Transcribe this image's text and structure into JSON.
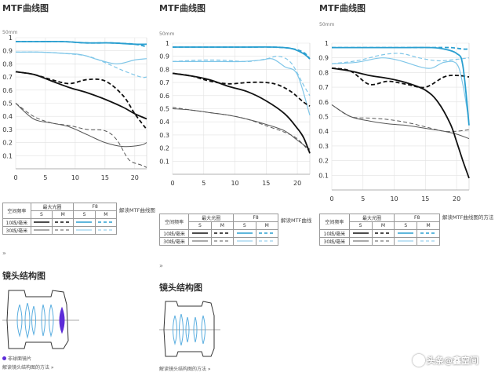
{
  "panels": [
    {
      "title": "MTF曲线图",
      "subtitle": "50mm",
      "legend_link": "解读MTF曲线图",
      "sections_title": "镜头结构图",
      "caption": "非球面镜片",
      "how_link": "解读镜头结构图的方法 »"
    },
    {
      "title": "MTF曲线图",
      "subtitle": "50mm",
      "legend_link": "解读MTF曲线",
      "sections_title": "镜头结构图",
      "caption": "",
      "how_link": "解读镜头结构图的方法 »"
    },
    {
      "title": "MTF曲线图",
      "subtitle": "50mm",
      "legend_link": "解读MTF曲线图的方法",
      "sections_title": "",
      "caption": "",
      "how_link": ""
    }
  ],
  "legend": {
    "freq_header": "空间频率",
    "max_aperture": "最大光圈",
    "f8": "F8",
    "s": "S",
    "m": "M",
    "row10": "10线/毫米",
    "row30": "30线/毫米"
  },
  "quote_mark": "»",
  "watermark": "头条@鑫空间",
  "colors": {
    "blue10": "#2a9fd0",
    "blue30": "#7fc6e8",
    "black10": "#111111",
    "black30": "#555555"
  },
  "chart_data": [
    {
      "type": "line",
      "title": "MTF曲线图",
      "xlim": [
        0,
        22
      ],
      "ylim": [
        0,
        1
      ],
      "xticks": [
        0,
        5,
        10,
        15,
        20
      ],
      "yticks": [
        0.1,
        0.2,
        0.3,
        0.4,
        0.5,
        0.6,
        0.7,
        0.8,
        0.9,
        1
      ],
      "series": [
        {
          "name": "F8 S 10线/毫米",
          "x": [
            0,
            4,
            8,
            12,
            16,
            20,
            22
          ],
          "y": [
            0.97,
            0.97,
            0.97,
            0.96,
            0.96,
            0.95,
            0.95
          ]
        },
        {
          "name": "F8 M 10线/毫米",
          "x": [
            0,
            4,
            8,
            12,
            16,
            20,
            22
          ],
          "y": [
            0.97,
            0.97,
            0.97,
            0.96,
            0.96,
            0.95,
            0.93
          ]
        },
        {
          "name": "F8 S 30线/毫米",
          "x": [
            0,
            4,
            8,
            11,
            14,
            17,
            20,
            22
          ],
          "y": [
            0.89,
            0.89,
            0.88,
            0.87,
            0.83,
            0.8,
            0.83,
            0.84
          ]
        },
        {
          "name": "F8 M 30线/毫米",
          "x": [
            0,
            4,
            8,
            12,
            15,
            18,
            21,
            22
          ],
          "y": [
            0.89,
            0.89,
            0.88,
            0.86,
            0.81,
            0.75,
            0.7,
            0.7
          ]
        },
        {
          "name": "最大光圈 S 10线/毫米",
          "x": [
            0,
            3,
            6,
            9,
            12,
            15,
            18,
            20,
            22
          ],
          "y": [
            0.74,
            0.72,
            0.67,
            0.62,
            0.58,
            0.53,
            0.47,
            0.42,
            0.38
          ]
        },
        {
          "name": "最大光圈 M 10线/毫米",
          "x": [
            0,
            3,
            6,
            9,
            12,
            15,
            18,
            20,
            22
          ],
          "y": [
            0.74,
            0.72,
            0.68,
            0.65,
            0.68,
            0.67,
            0.56,
            0.42,
            0.3
          ]
        },
        {
          "name": "最大光圈 S 30线/毫米",
          "x": [
            0,
            3,
            6,
            9,
            12,
            15,
            18,
            21,
            22
          ],
          "y": [
            0.5,
            0.38,
            0.35,
            0.32,
            0.26,
            0.2,
            0.17,
            0.18,
            0.2
          ]
        },
        {
          "name": "最大光圈 M 30线/毫米",
          "x": [
            0,
            3,
            6,
            9,
            12,
            15,
            17,
            19,
            21,
            22
          ],
          "y": [
            0.5,
            0.4,
            0.35,
            0.33,
            0.3,
            0.29,
            0.22,
            0.07,
            0.03,
            0.01
          ]
        }
      ]
    },
    {
      "type": "line",
      "title": "MTF曲线图",
      "xlim": [
        0,
        22
      ],
      "ylim": [
        0,
        1
      ],
      "xticks": [
        0,
        5,
        10,
        15,
        20
      ],
      "yticks": [
        0.1,
        0.2,
        0.3,
        0.4,
        0.5,
        0.6,
        0.7,
        0.8,
        0.9,
        1
      ],
      "series": [
        {
          "name": "F8 S 10线/毫米",
          "x": [
            0,
            4,
            8,
            12,
            16,
            19,
            21,
            22
          ],
          "y": [
            0.97,
            0.97,
            0.97,
            0.97,
            0.97,
            0.96,
            0.92,
            0.88
          ]
        },
        {
          "name": "F8 M 10线/毫米",
          "x": [
            0,
            4,
            8,
            12,
            16,
            19,
            21,
            22
          ],
          "y": [
            0.97,
            0.97,
            0.97,
            0.97,
            0.97,
            0.96,
            0.93,
            0.88
          ]
        },
        {
          "name": "F8 S 30线/毫米",
          "x": [
            0,
            4,
            8,
            11,
            14,
            16,
            18,
            20,
            22
          ],
          "y": [
            0.86,
            0.86,
            0.86,
            0.86,
            0.87,
            0.88,
            0.82,
            0.76,
            0.45
          ]
        },
        {
          "name": "F8 M 30线/毫米",
          "x": [
            0,
            4,
            8,
            12,
            15,
            17,
            19,
            21,
            22
          ],
          "y": [
            0.86,
            0.87,
            0.87,
            0.86,
            0.88,
            0.9,
            0.85,
            0.68,
            0.6
          ]
        },
        {
          "name": "最大光圈 S 10线/毫米",
          "x": [
            0,
            3,
            6,
            9,
            12,
            15,
            18,
            20,
            21,
            22
          ],
          "y": [
            0.77,
            0.75,
            0.72,
            0.67,
            0.63,
            0.56,
            0.46,
            0.35,
            0.28,
            0.16
          ]
        },
        {
          "name": "最大光圈 M 10线/毫米",
          "x": [
            0,
            3,
            6,
            9,
            12,
            15,
            17,
            19,
            21,
            22
          ],
          "y": [
            0.77,
            0.75,
            0.71,
            0.69,
            0.7,
            0.7,
            0.68,
            0.63,
            0.55,
            0.52
          ]
        },
        {
          "name": "最大光圈 S 30线/毫米",
          "x": [
            0,
            3,
            6,
            9,
            12,
            15,
            18,
            20,
            22
          ],
          "y": [
            0.5,
            0.49,
            0.47,
            0.45,
            0.42,
            0.38,
            0.33,
            0.26,
            0.19
          ]
        },
        {
          "name": "最大光圈 M 30线/毫米",
          "x": [
            0,
            3,
            6,
            9,
            12,
            15,
            18,
            20,
            22
          ],
          "y": [
            0.51,
            0.49,
            0.47,
            0.45,
            0.42,
            0.37,
            0.32,
            0.27,
            0.17
          ]
        }
      ]
    },
    {
      "type": "line",
      "title": "MTF曲线图",
      "xlim": [
        0,
        22
      ],
      "ylim": [
        0,
        1
      ],
      "xticks": [
        0,
        5,
        10,
        15,
        20
      ],
      "yticks": [
        0.1,
        0.2,
        0.3,
        0.4,
        0.5,
        0.6,
        0.7,
        0.8,
        0.9,
        1
      ],
      "series": [
        {
          "name": "F8 S 10线/毫米",
          "x": [
            0,
            4,
            8,
            12,
            16,
            18,
            20,
            21,
            22
          ],
          "y": [
            0.97,
            0.97,
            0.97,
            0.97,
            0.97,
            0.96,
            0.93,
            0.85,
            0.44
          ]
        },
        {
          "name": "F8 M 10线/毫米",
          "x": [
            0,
            4,
            8,
            12,
            16,
            19,
            21,
            22
          ],
          "y": [
            0.97,
            0.97,
            0.97,
            0.97,
            0.97,
            0.97,
            0.96,
            0.96
          ]
        },
        {
          "name": "F8 S 30线/毫米",
          "x": [
            0,
            4,
            8,
            11,
            14,
            16,
            18,
            20,
            21,
            22
          ],
          "y": [
            0.86,
            0.87,
            0.9,
            0.88,
            0.84,
            0.83,
            0.87,
            0.86,
            0.72,
            0.46
          ]
        },
        {
          "name": "F8 M 30线/毫米",
          "x": [
            0,
            4,
            8,
            11,
            14,
            17,
            20,
            22
          ],
          "y": [
            0.86,
            0.88,
            0.92,
            0.93,
            0.9,
            0.88,
            0.89,
            0.9
          ]
        },
        {
          "name": "最大光圈 S 10线/毫米",
          "x": [
            0,
            3,
            6,
            9,
            12,
            15,
            17,
            19,
            20,
            21,
            22
          ],
          "y": [
            0.83,
            0.81,
            0.78,
            0.76,
            0.73,
            0.68,
            0.6,
            0.45,
            0.33,
            0.2,
            0.08
          ]
        },
        {
          "name": "最大光圈 M 10线/毫米",
          "x": [
            0,
            3,
            6,
            9,
            12,
            15,
            18,
            20,
            22
          ],
          "y": [
            0.83,
            0.81,
            0.72,
            0.74,
            0.72,
            0.7,
            0.77,
            0.78,
            0.77
          ]
        },
        {
          "name": "最大光圈 S 30线/毫米",
          "x": [
            0,
            3,
            6,
            9,
            12,
            15,
            18,
            20,
            22
          ],
          "y": [
            0.58,
            0.5,
            0.47,
            0.45,
            0.44,
            0.42,
            0.4,
            0.38,
            0.35
          ]
        },
        {
          "name": "最大光圈 M 30线/毫米",
          "x": [
            0,
            3,
            6,
            9,
            12,
            15,
            18,
            20,
            22
          ],
          "y": [
            0.58,
            0.5,
            0.49,
            0.48,
            0.46,
            0.43,
            0.4,
            0.4,
            0.41
          ]
        }
      ]
    }
  ]
}
